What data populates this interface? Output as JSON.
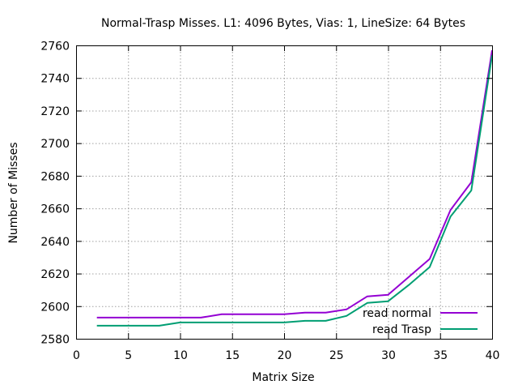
{
  "chart_data": {
    "type": "line",
    "title": "Normal-Trasp Misses. L1: 4096 Bytes, Vias: 1, LineSize: 64 Bytes",
    "xlabel": "Matrix Size",
    "ylabel": "Number of Misses",
    "xlim": [
      0,
      40
    ],
    "ylim": [
      2580,
      2760
    ],
    "xticks": [
      "0",
      "5",
      "10",
      "15",
      "20",
      "25",
      "30",
      "35",
      "40"
    ],
    "yticks": [
      "2580",
      "2600",
      "2620",
      "2640",
      "2660",
      "2680",
      "2700",
      "2720",
      "2740",
      "2760"
    ],
    "grid": true,
    "legend_position": "bottom-right",
    "x": [
      2,
      4,
      6,
      8,
      10,
      12,
      14,
      16,
      18,
      20,
      22,
      24,
      26,
      28,
      30,
      32,
      34,
      36,
      38,
      40
    ],
    "series": [
      {
        "name": "read normal",
        "color": "#9400d3",
        "values": [
          2593,
          2593,
          2593,
          2593,
          2593,
          2593,
          2595,
          2595,
          2595,
          2595,
          2596,
          2596,
          2598,
          2606,
          2607,
          2618,
          2629,
          2659,
          2676,
          2757
        ]
      },
      {
        "name": "read Trasp",
        "color": "#009e73",
        "values": [
          2588,
          2588,
          2588,
          2588,
          2590,
          2590,
          2590,
          2590,
          2590,
          2590,
          2591,
          2591,
          2594,
          2602,
          2603,
          2613,
          2624,
          2655,
          2671,
          2754
        ]
      }
    ]
  }
}
